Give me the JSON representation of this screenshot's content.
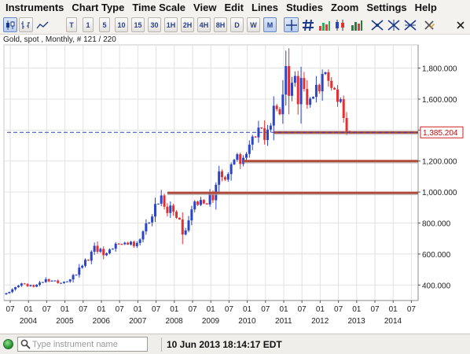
{
  "menu": [
    "Instruments",
    "Chart Type",
    "Time Scale",
    "View",
    "Edit",
    "Lines",
    "Studies",
    "Zoom",
    "Settings",
    "Help"
  ],
  "toolbar": {
    "timescale_buttons": [
      "T",
      "1",
      "5",
      "10",
      "15",
      "30",
      "1H",
      "2H",
      "4H",
      "8H",
      "D",
      "W",
      "M"
    ],
    "active_timescale": "M",
    "icons": [
      "candlestick-chart-icon",
      "bar-chart-icon",
      "line-chart-icon",
      "crosshair-icon",
      "hash-icon",
      "volume-bars-icon",
      "trendline-draw-icon",
      "fibonacci-draw-icon",
      "delete-drawing-icon",
      "close-icon"
    ]
  },
  "chart": {
    "title": "Gold, spot , Monthly, # 121 / 220",
    "price_label": "1,385.204"
  },
  "chart_data": {
    "type": "candlestick",
    "instrument": "Gold, spot",
    "interval": "Monthly",
    "ylim": [
      300,
      1950
    ],
    "xlim": [
      "2003-06",
      "2015-02"
    ],
    "y_ticks": [
      400,
      600,
      800,
      1000,
      1200,
      1400,
      1600,
      1800
    ],
    "y_tick_labels": [
      "400.000",
      "600.000",
      "800.000",
      "1,000.000",
      "1,200.000",
      "1,400.000",
      "1,600.000",
      "1,800.000"
    ],
    "x_tick_labels": [
      "07",
      "01",
      "07",
      "01",
      "07",
      "01",
      "07",
      "01",
      "07",
      "01",
      "07",
      "01",
      "07",
      "01",
      "07",
      "01",
      "07",
      "01",
      "07",
      "01",
      "07",
      "01",
      "07"
    ],
    "x_year_labels": [
      "2004",
      "2005",
      "2006",
      "2007",
      "2008",
      "2009",
      "2010",
      "2011",
      "2012",
      "2013",
      "2014"
    ],
    "current_price": 1385.204,
    "current_price_line_start": "2003-06",
    "horizontal_lines": [
      {
        "y": 1385,
        "from": "2010-10"
      },
      {
        "y": 1200,
        "from": "2009-12"
      },
      {
        "y": 995,
        "from": "2007-11"
      }
    ],
    "up_color": "#2a45c8",
    "down_color": "#e23030",
    "line_color": "#b04a3a",
    "closes": [
      347,
      355,
      372,
      386,
      396,
      410,
      406,
      392,
      399,
      389,
      402,
      416,
      419,
      437,
      424,
      428,
      429,
      413,
      413,
      421,
      423,
      436,
      464,
      466,
      512,
      524,
      563,
      557,
      615,
      653,
      615,
      633,
      592,
      605,
      629,
      634,
      667,
      664,
      663,
      673,
      661,
      679,
      651,
      671,
      694,
      746,
      798,
      804,
      842,
      923,
      925,
      978,
      905,
      865,
      913,
      873,
      834,
      823,
      726,
      752,
      817,
      888,
      939,
      917,
      949,
      926,
      920,
      991,
      947,
      1047,
      1133,
      1096,
      1080,
      1116,
      1179,
      1208,
      1244,
      1181,
      1221,
      1246,
      1306,
      1358,
      1353,
      1416,
      1411,
      1336,
      1403,
      1429,
      1557,
      1535,
      1502,
      1629,
      1813,
      1621,
      1705,
      1749,
      1567,
      1736,
      1665,
      1563,
      1603,
      1614,
      1692,
      1650,
      1762,
      1773,
      1718,
      1672,
      1662,
      1582,
      1599,
      1478,
      1393,
      1385
    ]
  }
}
